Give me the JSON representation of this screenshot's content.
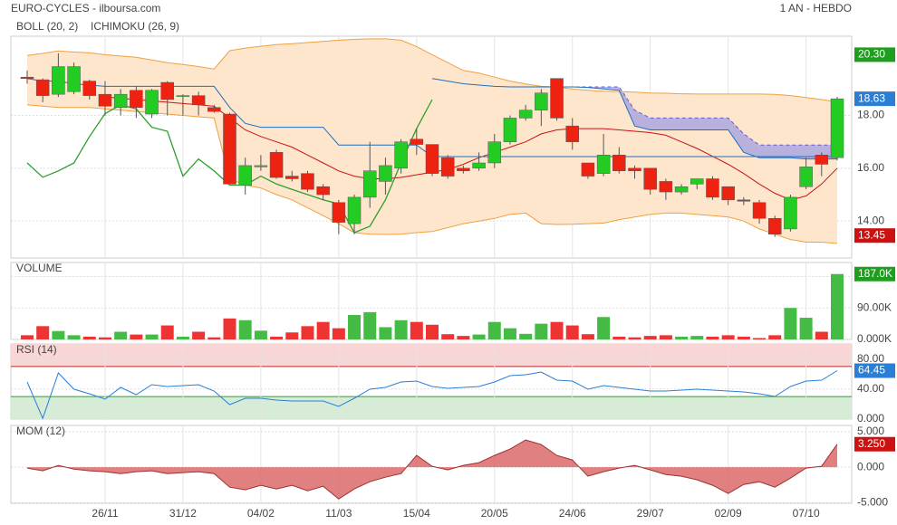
{
  "header": {
    "title": "EURO-CYCLES - ilboursa.com",
    "period": "1 AN - HEBDO"
  },
  "chart_data": [
    {
      "type": "candlestick",
      "up_color": "#22cc22",
      "down_color": "#ee2211",
      "ylim": [
        12.6,
        21.0
      ],
      "yticks": [
        {
          "value": 14,
          "label": "14.00"
        },
        {
          "value": 16,
          "label": "16.00"
        },
        {
          "value": 18,
          "label": "18.00"
        }
      ],
      "grid": true,
      "open": [
        19.45,
        19.35,
        18.8,
        18.9,
        19.3,
        18.8,
        18.3,
        18.95,
        18.05,
        19.25,
        18.75,
        18.75,
        18.3,
        18.05,
        15.35,
        16.05,
        16.6,
        15.7,
        15.8,
        15.3,
        14.7,
        13.9,
        14.9,
        15.5,
        16.0,
        17.1,
        16.9,
        16.4,
        16.0,
        16.0,
        16.2,
        17.0,
        17.9,
        18.2,
        19.4,
        17.6,
        16.2,
        15.8,
        16.5,
        16.0,
        16.0,
        15.5,
        15.1,
        15.4,
        15.6,
        15.3,
        14.8,
        14.7,
        14.1,
        13.7,
        15.3,
        16.5,
        16.4
      ],
      "high": [
        19.7,
        19.4,
        20.35,
        20.0,
        19.35,
        19.3,
        19.0,
        19.1,
        19.0,
        19.3,
        18.8,
        18.9,
        18.4,
        18.1,
        16.4,
        16.5,
        16.7,
        15.9,
        15.9,
        15.4,
        14.8,
        15.0,
        17.0,
        16.4,
        17.1,
        17.5,
        16.9,
        16.5,
        16.1,
        16.6,
        17.3,
        18.0,
        18.4,
        19.0,
        19.4,
        17.9,
        16.2,
        17.3,
        16.8,
        16.1,
        16.0,
        15.6,
        15.4,
        15.6,
        15.7,
        15.3,
        14.9,
        14.8,
        14.2,
        15.0,
        16.4,
        16.6,
        18.7
      ],
      "low": [
        19.2,
        18.5,
        18.7,
        18.8,
        18.6,
        18.0,
        18.0,
        17.9,
        17.9,
        18.0,
        18.0,
        18.0,
        18.1,
        15.4,
        15.0,
        15.9,
        15.6,
        15.5,
        15.1,
        14.8,
        13.5,
        13.5,
        14.5,
        15.0,
        15.8,
        16.5,
        15.7,
        15.6,
        15.8,
        15.9,
        16.0,
        16.9,
        17.8,
        17.6,
        17.8,
        16.7,
        15.6,
        15.7,
        15.8,
        15.6,
        15.0,
        14.8,
        15.0,
        15.2,
        14.8,
        14.6,
        14.6,
        13.9,
        13.4,
        13.6,
        15.2,
        15.7,
        16.3
      ],
      "close": [
        19.4,
        18.75,
        19.85,
        19.85,
        18.75,
        18.35,
        18.8,
        18.3,
        18.95,
        18.6,
        18.75,
        18.4,
        18.15,
        15.4,
        16.1,
        16.1,
        15.65,
        15.6,
        15.2,
        15.0,
        13.95,
        14.9,
        15.9,
        16.1,
        17.0,
        16.9,
        15.8,
        15.7,
        15.9,
        16.2,
        17.0,
        17.9,
        18.2,
        18.85,
        17.9,
        17.0,
        15.7,
        16.5,
        15.9,
        15.9,
        15.2,
        15.1,
        15.3,
        15.6,
        14.9,
        14.8,
        14.75,
        14.1,
        13.5,
        14.9,
        16.05,
        16.15,
        18.63
      ],
      "bollinger": {
        "label": "BOLL (20, 2)",
        "color": "#f0a040",
        "middle_color": "#cc1111",
        "fill": "#fde6cc",
        "upper": [
          20.27,
          20.35,
          20.44,
          20.4,
          20.37,
          20.3,
          20.25,
          20.2,
          20.1,
          20.0,
          19.93,
          19.85,
          19.76,
          20.45,
          20.55,
          20.62,
          20.68,
          20.72,
          20.76,
          20.8,
          20.85,
          20.88,
          20.9,
          20.9,
          20.85,
          20.61,
          20.3,
          20.0,
          19.7,
          19.6,
          19.45,
          19.3,
          19.19,
          19.1,
          19.08,
          19.0,
          18.95,
          18.92,
          18.9,
          18.88,
          18.85,
          18.84,
          18.82,
          18.81,
          18.81,
          18.81,
          18.81,
          18.81,
          18.8,
          18.75,
          18.68,
          18.6,
          18.51
        ],
        "middle": [
          null,
          null,
          null,
          null,
          null,
          18.7,
          18.65,
          18.6,
          18.55,
          18.5,
          18.45,
          18.4,
          18.35,
          17.9,
          17.45,
          17.2,
          17.0,
          16.8,
          16.5,
          16.2,
          15.9,
          15.7,
          15.6,
          15.6,
          15.65,
          15.75,
          15.85,
          15.95,
          16.15,
          16.4,
          16.6,
          16.8,
          17.0,
          17.3,
          17.45,
          17.5,
          17.5,
          17.5,
          17.45,
          17.4,
          17.35,
          17.25,
          17.0,
          16.75,
          16.45,
          16.15,
          15.8,
          15.4,
          15.05,
          14.8,
          14.95,
          15.4,
          16.0
        ],
        "lower": [
          18.4,
          18.35,
          18.3,
          18.3,
          18.3,
          18.25,
          18.2,
          18.15,
          18.1,
          18.05,
          18.0,
          17.95,
          17.9,
          15.6,
          15.36,
          15.25,
          15.0,
          14.8,
          14.5,
          14.2,
          13.9,
          13.56,
          13.5,
          13.49,
          13.5,
          13.56,
          13.6,
          13.75,
          13.9,
          14.0,
          14.1,
          14.25,
          14.3,
          13.9,
          13.87,
          13.88,
          13.9,
          13.92,
          14.05,
          14.15,
          14.25,
          14.3,
          14.3,
          14.25,
          14.2,
          14.15,
          14.0,
          13.7,
          13.5,
          13.3,
          13.2,
          13.2,
          13.15
        ]
      },
      "ichimoku": {
        "label": "ICHIMOKU (26, 9)",
        "color": "#1f6fc0",
        "tenkan_color": "#2e9e2e",
        "cloud_color": "#9a9ae6",
        "span_a_color": "#6a5acd",
        "tenkan": [
          16.2,
          15.66,
          15.9,
          16.2,
          17.2,
          18.07,
          18.4,
          18.25,
          17.55,
          17.4,
          15.7,
          16.35,
          15.9,
          15.36,
          15.36,
          15.7,
          15.4,
          15.2,
          15.0,
          14.8,
          14.65,
          13.56,
          13.8,
          14.8,
          16.2,
          17.5,
          18.6,
          null,
          null,
          null,
          null,
          null,
          null,
          null,
          null,
          null,
          null,
          null,
          null,
          null,
          null,
          null,
          null,
          null,
          null,
          null,
          null,
          null,
          null,
          null,
          null,
          null,
          null
        ],
        "kijun": [
          19.4,
          19.3,
          19.3,
          19.2,
          19.15,
          19.1,
          19.1,
          19.1,
          19.1,
          19.1,
          19.1,
          19.1,
          19.1,
          18.3,
          17.7,
          17.55,
          17.55,
          17.55,
          17.55,
          17.55,
          16.88,
          16.88,
          16.88,
          16.88,
          16.88,
          16.88,
          16.44,
          16.44,
          16.44,
          16.44,
          16.44,
          16.44,
          16.44,
          16.44,
          16.44,
          16.44,
          16.44,
          16.44,
          16.44,
          16.44,
          16.44,
          16.44,
          16.44,
          16.44,
          16.44,
          16.44,
          16.44,
          16.44,
          16.44,
          16.44,
          16.44,
          16.44,
          16.44
        ],
        "span_a": [
          null,
          null,
          null,
          null,
          null,
          null,
          null,
          null,
          null,
          null,
          null,
          null,
          null,
          null,
          null,
          null,
          null,
          null,
          null,
          null,
          null,
          null,
          null,
          null,
          null,
          null,
          null,
          null,
          null,
          null,
          null,
          null,
          null,
          null,
          19.08,
          19.08,
          19.08,
          19.08,
          19.08,
          18.2,
          17.9,
          17.9,
          17.9,
          17.9,
          17.9,
          17.9,
          17.3,
          16.88,
          16.88,
          16.88,
          16.88,
          16.88,
          16.88
        ],
        "span_b": [
          null,
          null,
          null,
          null,
          null,
          null,
          null,
          null,
          null,
          null,
          null,
          null,
          null,
          null,
          null,
          null,
          null,
          null,
          null,
          null,
          null,
          null,
          null,
          null,
          null,
          null,
          19.4,
          19.3,
          19.2,
          19.15,
          19.1,
          19.08,
          19.08,
          19.08,
          19.08,
          19.08,
          19.06,
          19.0,
          18.95,
          17.6,
          17.45,
          17.45,
          17.45,
          17.45,
          17.45,
          17.45,
          16.6,
          16.4,
          16.4,
          16.4,
          16.35,
          16.35,
          16.35
        ]
      },
      "badges": [
        {
          "value": 20.3,
          "label": "20.30",
          "color": "#1e9e1e"
        },
        {
          "value": 18.63,
          "label": "18.63",
          "color": "#2a7fd4"
        },
        {
          "value": 13.45,
          "label": "13.45",
          "color": "#cc1111"
        }
      ]
    },
    {
      "type": "bar",
      "title": "VOLUME",
      "up_color": "#44bb44",
      "down_color": "#ee3333",
      "ylim": [
        0,
        220000
      ],
      "yticks": [
        {
          "value": 0,
          "label": "0.000K"
        },
        {
          "value": 90000,
          "label": "90.00K"
        },
        {
          "value": 180000,
          "label": "180.0K"
        }
      ],
      "grid": true,
      "values": [
        12000,
        38000,
        24000,
        12000,
        8000,
        6000,
        22000,
        14000,
        14000,
        40000,
        8000,
        22000,
        6000,
        60000,
        55000,
        25000,
        8000,
        20000,
        38000,
        50000,
        32000,
        70000,
        78000,
        35000,
        55000,
        50000,
        42000,
        15000,
        10000,
        14000,
        50000,
        32000,
        16000,
        45000,
        50000,
        40000,
        15000,
        64000,
        8000,
        6000,
        10000,
        12000,
        8000,
        10000,
        8000,
        12000,
        8000,
        4000,
        12000,
        90000,
        62000,
        22000,
        187000
      ],
      "badges": [
        {
          "value": 187000,
          "label": "187.0K",
          "color": "#1e9e1e"
        }
      ]
    },
    {
      "type": "line",
      "title": "RSI (14)",
      "color": "#2a7fd4",
      "ylim": [
        0,
        100
      ],
      "yticks": [
        {
          "value": 0,
          "label": "0.000"
        },
        {
          "value": 40,
          "label": "40.00"
        },
        {
          "value": 80,
          "label": "80.00"
        }
      ],
      "grid": true,
      "overbought": 70,
      "oversold": 30,
      "values": [
        49.4,
        1,
        61.4,
        39.8,
        33.7,
        26.5,
        42.2,
        32.5,
        45.8,
        43.4,
        44.6,
        45.8,
        37.3,
        19.3,
        27.7,
        27.7,
        25.3,
        24.1,
        24.1,
        24.1,
        16.9,
        27.7,
        39.8,
        42.2,
        49.4,
        50.6,
        43.4,
        41,
        42.2,
        43.4,
        49.4,
        57.8,
        59,
        62.7,
        51.8,
        50.6,
        39.8,
        44.6,
        42.2,
        39.8,
        37.3,
        37.3,
        38.6,
        39.8,
        38.6,
        37.3,
        36.1,
        33.7,
        30.1,
        43.4,
        50.6,
        51.8,
        64.45
      ],
      "badges": [
        {
          "value": 64.45,
          "label": "64.45",
          "color": "#2a7fd4"
        }
      ]
    },
    {
      "type": "area",
      "title": "MOM (12)",
      "color": "#d96060",
      "ylim": [
        -5.1,
        5.9
      ],
      "yticks": [
        {
          "value": -5,
          "label": "-5.000"
        },
        {
          "value": 0,
          "label": "0.000"
        },
        {
          "value": 5,
          "label": "5.000"
        }
      ],
      "grid": true,
      "categories": [
        null,
        null,
        null,
        null,
        null,
        "26/11",
        null,
        null,
        null,
        null,
        "31/12",
        null,
        null,
        null,
        null,
        "04/02",
        null,
        null,
        null,
        null,
        "11/03",
        null,
        null,
        null,
        null,
        "15/04",
        null,
        null,
        null,
        null,
        "20/05",
        null,
        null,
        null,
        null,
        "24/06",
        null,
        null,
        null,
        null,
        "29/07",
        null,
        null,
        null,
        null,
        "02/09",
        null,
        null,
        null,
        null,
        "07/10",
        null,
        null
      ],
      "values": [
        -0.13,
        -0.51,
        0.26,
        -0.26,
        -0.51,
        -0.64,
        -0.9,
        -0.64,
        -0.51,
        -0.9,
        -0.77,
        -0.64,
        -0.9,
        -2.82,
        -3.2,
        -2.56,
        -3.08,
        -2.56,
        -3.33,
        -2.69,
        -4.49,
        -3.08,
        -2.05,
        -1.41,
        -0.9,
        1.67,
        0.13,
        -0.38,
        0.26,
        0.64,
        1.67,
        2.56,
        3.85,
        3.2,
        1.67,
        1.03,
        -1.28,
        -0.64,
        -0.13,
        0.26,
        -0.38,
        -1.03,
        -1.28,
        -1.79,
        -2.56,
        -3.72,
        -2.44,
        -2.05,
        -2.82,
        -1.54,
        -0.13,
        0.13,
        3.25
      ],
      "badges": [
        {
          "value": 3.25,
          "label": "3.250",
          "color": "#cc1111"
        }
      ]
    }
  ]
}
